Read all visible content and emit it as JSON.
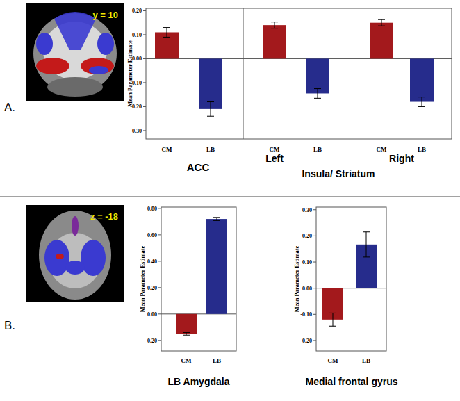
{
  "chart_data": [
    {
      "type": "bar",
      "y_label": "Mean Parameter Estimate",
      "categories": [
        "CM",
        "LB",
        "CM",
        "LB",
        "CM",
        "LB"
      ],
      "values": [
        0.11,
        -0.21,
        0.14,
        -0.145,
        0.15,
        -0.18
      ],
      "errors": [
        0.02,
        0.03,
        0.013,
        0.02,
        0.013,
        0.02
      ],
      "colors": [
        "#a3191c",
        "#262c8c",
        "#a3191c",
        "#262c8c",
        "#a3191c",
        "#262c8c"
      ],
      "ylim": [
        -0.335,
        0.21
      ],
      "yticks": [
        {
          "value": -0.3,
          "label": "-0.30"
        },
        {
          "value": -0.2,
          "label": "-0.20"
        },
        {
          "value": -0.1,
          "label": "-0.10"
        },
        {
          "value": 0,
          "label": "0.00"
        },
        {
          "value": 0.1,
          "label": "0.10"
        },
        {
          "value": 0.2,
          "label": "0.20"
        }
      ],
      "annotations": [
        "ACC",
        "Left",
        "Right",
        "Insula/ Striatum"
      ]
    },
    {
      "type": "bar",
      "y_label": "Mean Parameter Estimate",
      "x_label": "LB Amygdala",
      "categories": [
        "CM",
        "LB"
      ],
      "values": [
        -0.15,
        0.72
      ],
      "errors": [
        0.01,
        0.012
      ],
      "colors": [
        "#a3191c",
        "#262c8c"
      ],
      "ylim": [
        -0.28,
        0.81
      ],
      "yticks": [
        {
          "value": -0.2,
          "label": "-0.20"
        },
        {
          "value": 0,
          "label": "0.00"
        },
        {
          "value": 0.2,
          "label": "0.20"
        },
        {
          "value": 0.4,
          "label": "0.40"
        },
        {
          "value": 0.6,
          "label": "0.60"
        },
        {
          "value": 0.8,
          "label": "0.80"
        }
      ]
    },
    {
      "type": "bar",
      "y_label": "Mean Parameter Estimate",
      "x_label": "Medial frontal gyrus",
      "categories": [
        "CM",
        "LB"
      ],
      "values": [
        -0.12,
        0.167
      ],
      "errors": [
        0.025,
        0.048
      ],
      "colors": [
        "#a3191c",
        "#262c8c"
      ],
      "ylim": [
        -0.24,
        0.31
      ],
      "yticks": [
        {
          "value": -0.2,
          "label": "-0.20"
        },
        {
          "value": -0.1,
          "label": "-0.10"
        },
        {
          "value": 0,
          "label": "0.00"
        },
        {
          "value": 0.1,
          "label": "0.10"
        },
        {
          "value": 0.2,
          "label": "0.20"
        },
        {
          "value": 0.3,
          "label": "0.30"
        }
      ]
    }
  ],
  "panels": [
    {
      "label": "A.",
      "image_text": "y = 10"
    },
    {
      "label": "B.",
      "image_text": "z = -18"
    }
  ]
}
